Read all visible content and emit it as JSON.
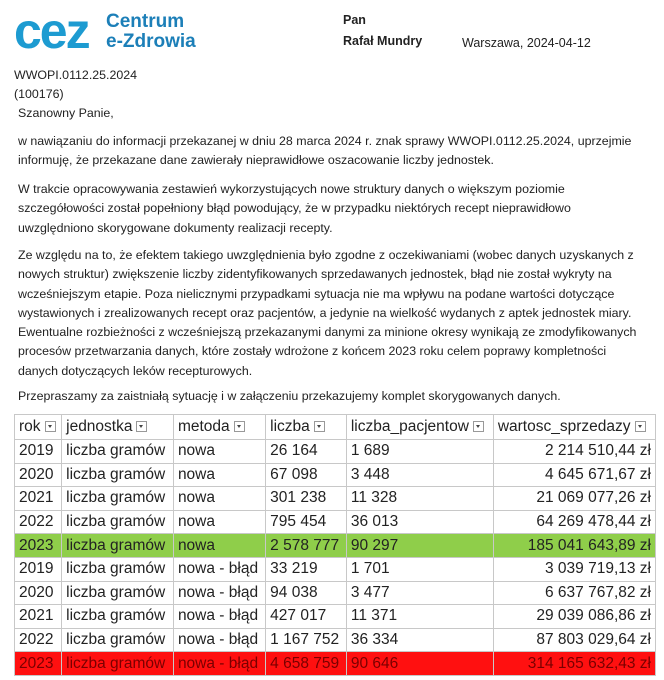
{
  "logo": {
    "mark": "cez",
    "line1": "Centrum",
    "line2": "e-Zdrowia"
  },
  "addressee": {
    "salutation": "Pan",
    "name": "Rafał Mundry"
  },
  "place_date": "Warszawa, 2024-04-12",
  "reference": [
    "WWOPI.0112.25.2024",
    "(100176)"
  ],
  "greeting": "Szanowny Panie,",
  "paragraphs": [
    "w nawiązaniu do informacji przekazanej w dniu 28 marca 2024 r. znak sprawy WWOPI.0112.25.2024, uprzejmie informuję, że przekazane dane zawierały nieprawidłowe oszacowanie liczby jednostek.",
    "W trakcie opracowywania zestawień wykorzystujących nowe struktury danych o większym poziomie szczegółowości został popełniony błąd powodujący, że w przypadku niektórych recept nieprawidłowo uwzględniono skorygowane dokumenty realizacji recepty.",
    "Ze względu na to, że efektem takiego uwzględnienia było zgodne z oczekiwaniami (wobec danych uzyskanych z nowych struktur) zwiększenie liczby zidentyfikowanych sprzedawanych jednostek, błąd nie został wykryty na wcześniejszym etapie. Poza nielicznymi przypadkami sytuacja nie ma wpływu na podane wartości dotyczące wystawionych i zrealizowanych recept oraz pacjentów, a jedynie na wielkość wydanych z aptek jednostek miary. Ewentualne rozbieżności z wcześniejszą przekazanymi danymi za minione okresy wynikają ze zmodyfikowanych procesów przetwarzania danych, które zostały wdrożone z końcem 2023 roku celem poprawy kompletności danych dotyczących leków recepturowych.",
    "Przepraszamy za zaistniałą sytuację i w załączeniu przekazujemy komplet skorygowanych danych."
  ],
  "table": {
    "columns": [
      "rok",
      "jednostka",
      "metoda",
      "liczba",
      "liczba_pacjentow",
      "wartosc_sprzedazy"
    ],
    "rows": [
      [
        "2019",
        "liczba gramów",
        "nowa",
        "26 164",
        "1 689",
        "2 214 510,44 zł"
      ],
      [
        "2020",
        "liczba gramów",
        "nowa",
        "67 098",
        "3 448",
        "4 645 671,67 zł"
      ],
      [
        "2021",
        "liczba gramów",
        "nowa",
        "301 238",
        "11 328",
        "21 069 077,26 zł"
      ],
      [
        "2022",
        "liczba gramów",
        "nowa",
        "795 454",
        "36 013",
        "64 269 478,44 zł"
      ],
      [
        "2023",
        "liczba gramów",
        "nowa",
        "2 578 777",
        "90 297",
        "185 041 643,89 zł"
      ],
      [
        "2019",
        "liczba gramów",
        "nowa - błąd",
        "33 219",
        "1 701",
        "3 039 719,13 zł"
      ],
      [
        "2020",
        "liczba gramów",
        "nowa - błąd",
        "94 038",
        "3 477",
        "6 637 767,82 zł"
      ],
      [
        "2021",
        "liczba gramów",
        "nowa - błąd",
        "427 017",
        "11 371",
        "29 039 086,86 zł"
      ],
      [
        "2022",
        "liczba gramów",
        "nowa - błąd",
        "1 167 752",
        "36 334",
        "87 803 029,64 zł"
      ],
      [
        "2023",
        "liczba gramów",
        "nowa - błąd",
        "4 658 759",
        "90 646",
        "314 165 632,43 zł"
      ]
    ]
  }
}
